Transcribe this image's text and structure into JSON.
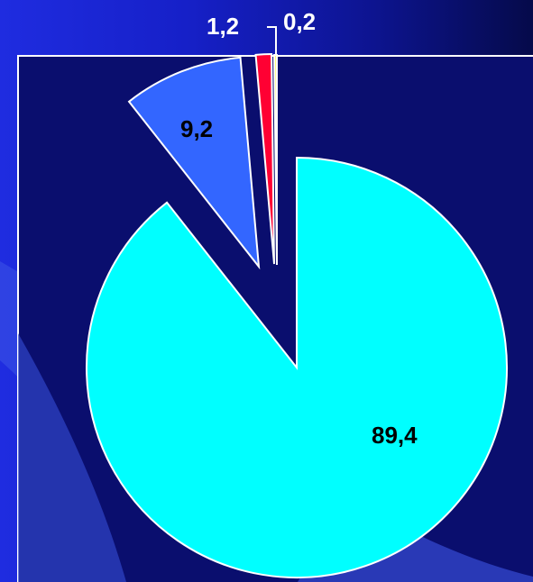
{
  "theme": {
    "slide_background_start": "#1f2ce0",
    "slide_background_end": "#050a4a",
    "plot_area_fill": "#0a0e6e",
    "plot_area_border": "#ffffff",
    "slice_outline": "#ffffff",
    "decorative_swoosh": "#3d56e6"
  },
  "chart_data": {
    "type": "pie",
    "title": "",
    "legend": "none",
    "slices": [
      {
        "value": 89.4,
        "label": "89,4",
        "color": "#00ffff",
        "exploded": false
      },
      {
        "value": 9.2,
        "label": "9,2",
        "color": "#3366ff",
        "exploded": true
      },
      {
        "value": 1.2,
        "label": "1,2",
        "color": "#ff0033",
        "exploded": true
      },
      {
        "value": 0.2,
        "label": "0,2",
        "color": "#ffff66",
        "exploded": true
      }
    ]
  }
}
